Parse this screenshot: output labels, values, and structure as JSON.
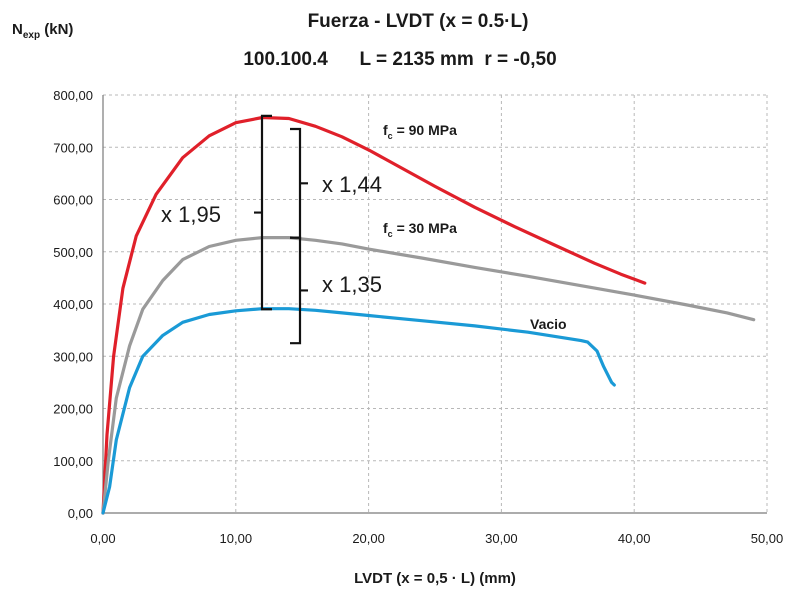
{
  "chart_data": {
    "type": "line",
    "title": "Fuerza - LVDT (x = 0.5·L)",
    "subtitle": "100.100.4      L = 2135 mm  r = -0,50",
    "xlabel": "LVDT (x = 0,5 · L) (mm)",
    "ylabel": {
      "main": "N",
      "sub": "exp",
      "unit": " (kN)"
    },
    "xlim": [
      0,
      50
    ],
    "ylim": [
      0,
      800
    ],
    "x_ticks": [
      0,
      10,
      20,
      30,
      40,
      50
    ],
    "y_ticks": [
      0,
      100,
      200,
      300,
      400,
      500,
      600,
      700,
      800
    ],
    "x_tick_labels": [
      "0,00",
      "10,00",
      "20,00",
      "30,00",
      "40,00",
      "50,00"
    ],
    "y_tick_labels": [
      "0,00",
      "100,00",
      "200,00",
      "300,00",
      "400,00",
      "500,00",
      "600,00",
      "700,00",
      "800,00"
    ],
    "grid": true,
    "series": [
      {
        "name": "fc = 90 MPa",
        "label_main": "f",
        "label_sub": "c",
        "label_rest": " = 90 MPa",
        "color": "#e0202a",
        "points": [
          [
            0,
            0
          ],
          [
            0.3,
            150
          ],
          [
            0.8,
            300
          ],
          [
            1.5,
            430
          ],
          [
            2.5,
            530
          ],
          [
            4,
            610
          ],
          [
            6,
            680
          ],
          [
            8,
            722
          ],
          [
            10,
            747
          ],
          [
            12,
            757
          ],
          [
            14,
            755
          ],
          [
            16,
            740
          ],
          [
            18,
            720
          ],
          [
            20,
            695
          ],
          [
            22,
            667
          ],
          [
            25,
            625
          ],
          [
            28,
            585
          ],
          [
            31,
            548
          ],
          [
            34,
            513
          ],
          [
            37,
            478
          ],
          [
            39,
            457
          ],
          [
            40.8,
            440
          ]
        ]
      },
      {
        "name": "fc = 30 MPa",
        "label_main": "f",
        "label_sub": "c",
        "label_rest": " = 30 MPa",
        "color": "#9a9a9a",
        "points": [
          [
            0,
            0
          ],
          [
            0.4,
            100
          ],
          [
            1,
            220
          ],
          [
            2,
            320
          ],
          [
            3,
            390
          ],
          [
            4.5,
            445
          ],
          [
            6,
            485
          ],
          [
            8,
            510
          ],
          [
            10,
            522
          ],
          [
            12,
            527
          ],
          [
            14,
            527
          ],
          [
            16,
            522
          ],
          [
            18,
            515
          ],
          [
            20,
            505
          ],
          [
            24,
            488
          ],
          [
            28,
            470
          ],
          [
            32,
            453
          ],
          [
            36,
            435
          ],
          [
            40,
            417
          ],
          [
            44,
            398
          ],
          [
            47,
            383
          ],
          [
            49,
            370
          ]
        ]
      },
      {
        "name": "Vacio",
        "label_main": "Vacio",
        "label_sub": "",
        "label_rest": "",
        "color": "#1a9ad6",
        "points": [
          [
            0,
            0
          ],
          [
            0.5,
            50
          ],
          [
            1,
            140
          ],
          [
            2,
            240
          ],
          [
            3,
            300
          ],
          [
            4.5,
            340
          ],
          [
            6,
            365
          ],
          [
            8,
            380
          ],
          [
            10,
            387
          ],
          [
            12,
            391
          ],
          [
            14,
            391
          ],
          [
            16,
            388
          ],
          [
            18,
            383
          ],
          [
            20,
            378
          ],
          [
            24,
            368
          ],
          [
            28,
            358
          ],
          [
            32,
            346
          ],
          [
            36,
            330
          ],
          [
            36.5,
            327
          ],
          [
            37.2,
            310
          ],
          [
            37.7,
            280
          ],
          [
            38.3,
            250
          ],
          [
            38.5,
            245
          ]
        ]
      }
    ],
    "annotations": {
      "big_bracket": {
        "label": "x 1,95",
        "y_from": 390,
        "y_to": 760
      },
      "upper_bracket": {
        "label": "x 1,44",
        "y_from": 527,
        "y_to": 735
      },
      "lower_bracket": {
        "label": "x 1,35",
        "y_from": 325,
        "y_to": 527
      }
    }
  }
}
